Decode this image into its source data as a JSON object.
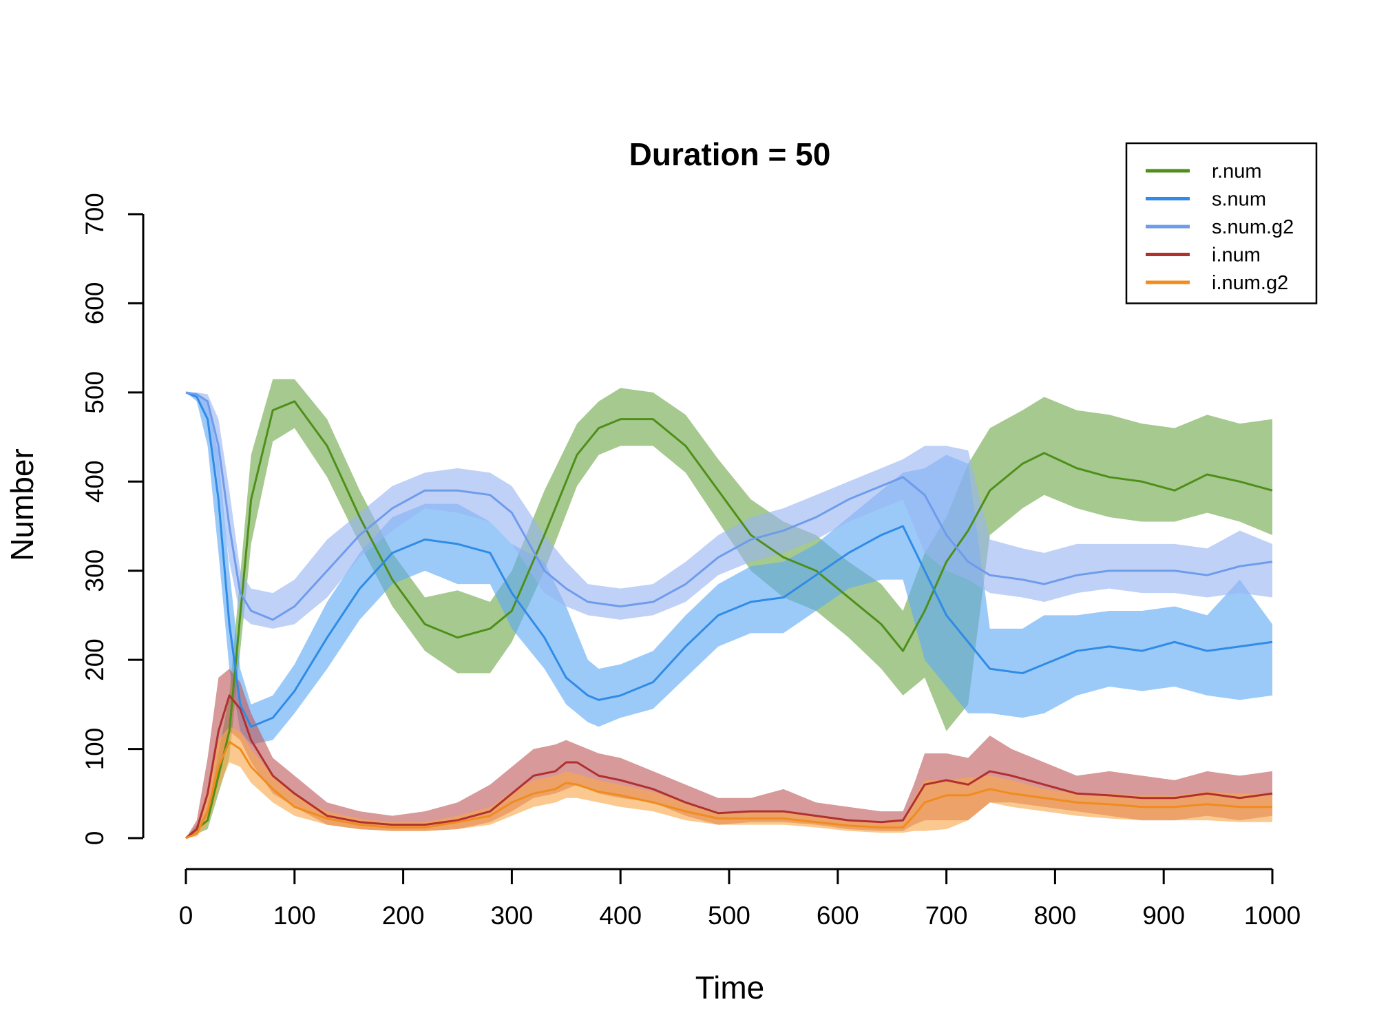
{
  "chart_data": {
    "type": "line",
    "title": "Duration = 50",
    "xlabel": "Time",
    "ylabel": "Number",
    "xlim": [
      0,
      1000
    ],
    "ylim": [
      0,
      700
    ],
    "x_ticks": [
      0,
      100,
      200,
      300,
      400,
      500,
      600,
      700,
      800,
      900,
      1000
    ],
    "y_ticks": [
      0,
      100,
      200,
      300,
      400,
      500,
      600,
      700
    ],
    "grid": false,
    "legend_position": "top-right",
    "series": [
      {
        "name": "r.num",
        "color": "#4E8F1A",
        "band_color": "#6FA84A",
        "x": [
          0,
          20,
          40,
          60,
          80,
          100,
          130,
          160,
          190,
          220,
          250,
          280,
          300,
          330,
          360,
          380,
          400,
          430,
          460,
          490,
          520,
          550,
          580,
          610,
          640,
          660,
          680,
          700,
          720,
          740,
          770,
          790,
          820,
          850,
          880,
          910,
          940,
          970,
          1000
        ],
        "values": [
          0,
          20,
          120,
          380,
          480,
          490,
          440,
          360,
          290,
          240,
          225,
          235,
          255,
          340,
          430,
          460,
          470,
          470,
          440,
          390,
          340,
          315,
          300,
          270,
          240,
          210,
          255,
          310,
          345,
          390,
          420,
          432,
          415,
          405,
          400,
          390,
          408,
          400,
          390
        ],
        "upper": [
          0,
          30,
          160,
          430,
          515,
          515,
          470,
          390,
          320,
          270,
          278,
          265,
          300,
          390,
          465,
          490,
          505,
          500,
          475,
          425,
          380,
          355,
          340,
          310,
          285,
          255,
          320,
          360,
          420,
          460,
          480,
          495,
          480,
          475,
          465,
          460,
          475,
          465,
          470
        ],
        "lower": [
          0,
          10,
          90,
          330,
          445,
          460,
          405,
          330,
          260,
          210,
          185,
          185,
          220,
          300,
          395,
          430,
          440,
          440,
          410,
          355,
          300,
          270,
          255,
          225,
          190,
          160,
          180,
          120,
          150,
          340,
          370,
          385,
          370,
          360,
          355,
          355,
          365,
          355,
          340
        ]
      },
      {
        "name": "s.num",
        "color": "#2F8BE6",
        "band_color": "#5EAAF5",
        "x": [
          0,
          10,
          20,
          30,
          40,
          50,
          60,
          80,
          100,
          130,
          160,
          190,
          220,
          250,
          280,
          300,
          330,
          350,
          370,
          380,
          400,
          430,
          460,
          490,
          520,
          550,
          580,
          610,
          640,
          660,
          680,
          700,
          720,
          740,
          770,
          790,
          820,
          850,
          880,
          910,
          940,
          970,
          1000
        ],
        "values": [
          500,
          495,
          470,
          380,
          240,
          150,
          125,
          135,
          165,
          225,
          280,
          320,
          335,
          330,
          320,
          275,
          225,
          180,
          160,
          155,
          160,
          175,
          215,
          250,
          265,
          270,
          295,
          320,
          340,
          350,
          300,
          250,
          220,
          190,
          185,
          195,
          210,
          215,
          210,
          220,
          210,
          215,
          220
        ],
        "upper": [
          500,
          498,
          490,
          430,
          300,
          190,
          150,
          160,
          195,
          265,
          320,
          360,
          375,
          375,
          355,
          330,
          310,
          260,
          200,
          190,
          195,
          210,
          250,
          285,
          305,
          310,
          330,
          360,
          390,
          410,
          415,
          430,
          420,
          235,
          235,
          250,
          250,
          255,
          255,
          260,
          250,
          290,
          240
        ],
        "lower": [
          500,
          490,
          440,
          320,
          190,
          120,
          105,
          110,
          140,
          190,
          245,
          285,
          300,
          285,
          285,
          235,
          190,
          150,
          130,
          125,
          135,
          145,
          180,
          215,
          230,
          230,
          255,
          280,
          290,
          290,
          200,
          170,
          140,
          140,
          135,
          140,
          160,
          170,
          165,
          170,
          160,
          155,
          160
        ]
      },
      {
        "name": "s.num.g2",
        "color": "#6E9CEB",
        "band_color": "#97B5F2",
        "x": [
          0,
          10,
          20,
          30,
          40,
          50,
          60,
          80,
          100,
          130,
          160,
          190,
          220,
          250,
          280,
          300,
          330,
          350,
          370,
          400,
          430,
          460,
          490,
          520,
          550,
          580,
          610,
          640,
          660,
          680,
          700,
          720,
          740,
          770,
          790,
          820,
          850,
          880,
          910,
          940,
          970,
          1000
        ],
        "values": [
          500,
          498,
          490,
          440,
          350,
          275,
          255,
          245,
          260,
          300,
          340,
          370,
          390,
          390,
          385,
          365,
          300,
          280,
          265,
          260,
          265,
          285,
          315,
          335,
          345,
          360,
          380,
          395,
          405,
          385,
          340,
          310,
          295,
          290,
          285,
          295,
          300,
          300,
          300,
          295,
          305,
          310
        ],
        "upper": [
          500,
          500,
          498,
          470,
          390,
          300,
          280,
          275,
          290,
          335,
          365,
          395,
          410,
          415,
          410,
          395,
          340,
          310,
          285,
          280,
          285,
          310,
          340,
          360,
          370,
          385,
          400,
          415,
          425,
          440,
          440,
          435,
          335,
          325,
          320,
          330,
          330,
          330,
          330,
          325,
          345,
          330
        ],
        "lower": [
          500,
          495,
          470,
          400,
          310,
          250,
          240,
          235,
          240,
          270,
          315,
          345,
          370,
          365,
          355,
          330,
          275,
          260,
          250,
          245,
          250,
          265,
          295,
          310,
          320,
          335,
          355,
          370,
          380,
          320,
          300,
          290,
          275,
          270,
          265,
          275,
          280,
          275,
          275,
          270,
          275,
          270
        ]
      },
      {
        "name": "i.num",
        "color": "#B03030",
        "band_color": "#BF5A5A",
        "x": [
          0,
          10,
          20,
          30,
          40,
          50,
          60,
          80,
          100,
          130,
          160,
          190,
          220,
          250,
          280,
          300,
          320,
          340,
          350,
          360,
          380,
          400,
          430,
          460,
          490,
          520,
          550,
          580,
          610,
          640,
          660,
          670,
          680,
          700,
          720,
          740,
          760,
          790,
          820,
          850,
          880,
          910,
          940,
          970,
          1000
        ],
        "values": [
          0,
          10,
          50,
          120,
          160,
          145,
          110,
          70,
          50,
          25,
          18,
          15,
          15,
          20,
          30,
          50,
          70,
          75,
          85,
          85,
          70,
          65,
          55,
          40,
          28,
          30,
          30,
          25,
          20,
          18,
          20,
          40,
          60,
          65,
          60,
          75,
          70,
          60,
          50,
          48,
          45,
          45,
          50,
          45,
          50
        ],
        "upper": [
          0,
          20,
          90,
          180,
          190,
          175,
          140,
          90,
          70,
          40,
          30,
          25,
          30,
          40,
          60,
          80,
          100,
          105,
          110,
          105,
          95,
          90,
          75,
          60,
          45,
          45,
          55,
          40,
          35,
          30,
          30,
          60,
          95,
          95,
          90,
          115,
          100,
          85,
          70,
          75,
          70,
          65,
          75,
          70,
          75
        ],
        "lower": [
          0,
          5,
          25,
          70,
          120,
          110,
          85,
          50,
          35,
          15,
          10,
          8,
          8,
          10,
          18,
          30,
          45,
          50,
          55,
          60,
          50,
          45,
          40,
          25,
          15,
          18,
          18,
          15,
          10,
          8,
          8,
          15,
          20,
          20,
          20,
          40,
          40,
          35,
          30,
          25,
          20,
          20,
          25,
          20,
          25
        ]
      },
      {
        "name": "i.num.g2",
        "color": "#F08C1E",
        "band_color": "#F8A84A",
        "x": [
          0,
          10,
          20,
          30,
          40,
          50,
          60,
          80,
          100,
          130,
          160,
          190,
          220,
          250,
          280,
          300,
          320,
          340,
          350,
          360,
          380,
          400,
          430,
          460,
          490,
          520,
          550,
          580,
          610,
          640,
          660,
          670,
          680,
          700,
          720,
          740,
          760,
          790,
          820,
          850,
          880,
          910,
          940,
          970,
          1000
        ],
        "values": [
          0,
          5,
          30,
          80,
          108,
          100,
          80,
          55,
          35,
          22,
          15,
          12,
          12,
          18,
          25,
          40,
          50,
          55,
          62,
          60,
          52,
          48,
          40,
          30,
          22,
          22,
          22,
          18,
          14,
          12,
          12,
          25,
          40,
          48,
          48,
          55,
          50,
          45,
          40,
          38,
          35,
          35,
          38,
          35,
          35
        ],
        "upper": [
          0,
          10,
          55,
          110,
          125,
          120,
          100,
          70,
          48,
          30,
          22,
          18,
          18,
          25,
          35,
          52,
          65,
          70,
          75,
          72,
          65,
          60,
          52,
          40,
          30,
          30,
          30,
          25,
          20,
          18,
          18,
          45,
          65,
          65,
          68,
          70,
          65,
          55,
          50,
          50,
          48,
          48,
          52,
          50,
          50
        ],
        "lower": [
          0,
          2,
          15,
          55,
          85,
          80,
          62,
          40,
          25,
          15,
          10,
          8,
          8,
          10,
          15,
          25,
          35,
          40,
          45,
          45,
          40,
          35,
          30,
          20,
          15,
          15,
          15,
          12,
          8,
          6,
          6,
          8,
          8,
          10,
          20,
          40,
          35,
          30,
          25,
          22,
          20,
          20,
          20,
          18,
          18
        ]
      }
    ]
  }
}
